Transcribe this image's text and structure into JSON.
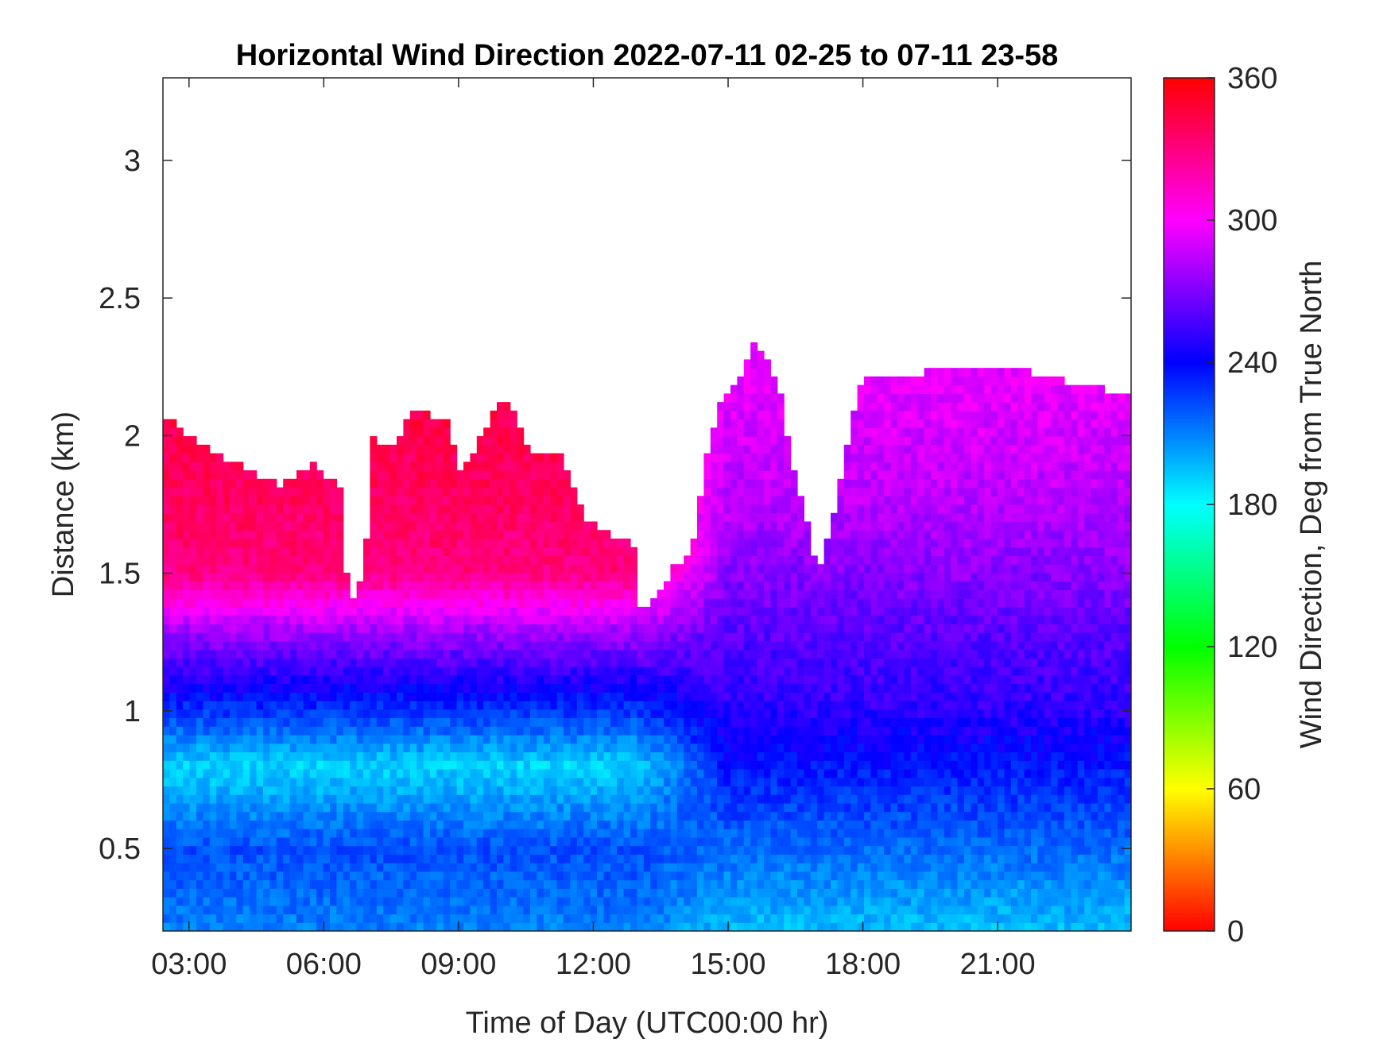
{
  "chart_data": {
    "type": "heatmap",
    "title": "Horizontal Wind Direction 2022-07-11 02-25 to 07-11 23-58",
    "xlabel": "Time of Day (UTC00:00 hr)",
    "ylabel": "Distance (km)",
    "colorbar_label": "Wind Direction, Deg from True North",
    "x_range_hours": [
      2.42,
      23.97
    ],
    "ylim": [
      0.2,
      3.3
    ],
    "x_ticks": [
      {
        "hour": 3,
        "label": "03:00"
      },
      {
        "hour": 6,
        "label": "06:00"
      },
      {
        "hour": 9,
        "label": "09:00"
      },
      {
        "hour": 12,
        "label": "12:00"
      },
      {
        "hour": 15,
        "label": "15:00"
      },
      {
        "hour": 18,
        "label": "18:00"
      },
      {
        "hour": 21,
        "label": "21:00"
      }
    ],
    "y_ticks": [
      {
        "value": 0.5,
        "label": "0.5"
      },
      {
        "value": 1,
        "label": "1"
      },
      {
        "value": 1.5,
        "label": "1.5"
      },
      {
        "value": 2,
        "label": "2"
      },
      {
        "value": 2.5,
        "label": "2.5"
      },
      {
        "value": 3,
        "label": "3"
      }
    ],
    "colorbar": {
      "range": [
        0,
        360
      ],
      "colormap": "hsv",
      "ticks": [
        {
          "value": 0,
          "label": "0"
        },
        {
          "value": 60,
          "label": "60"
        },
        {
          "value": 120,
          "label": "120"
        },
        {
          "value": 180,
          "label": "180"
        },
        {
          "value": 240,
          "label": "240"
        },
        {
          "value": 300,
          "label": "300"
        },
        {
          "value": 360,
          "label": "360"
        }
      ]
    },
    "data_top_km": [
      [
        2.42,
        2.08
      ],
      [
        3.0,
        2.0
      ],
      [
        4.0,
        1.9
      ],
      [
        5.0,
        1.82
      ],
      [
        5.8,
        1.9
      ],
      [
        6.4,
        1.8
      ],
      [
        6.55,
        1.38
      ],
      [
        6.9,
        1.5
      ],
      [
        7.1,
        2.0
      ],
      [
        7.5,
        1.95
      ],
      [
        8.0,
        2.1
      ],
      [
        8.8,
        2.05
      ],
      [
        9.0,
        1.85
      ],
      [
        9.5,
        2.0
      ],
      [
        10.0,
        2.15
      ],
      [
        10.6,
        1.95
      ],
      [
        11.2,
        1.95
      ],
      [
        11.8,
        1.7
      ],
      [
        12.3,
        1.65
      ],
      [
        12.9,
        1.6
      ],
      [
        13.05,
        1.38
      ],
      [
        13.4,
        1.4
      ],
      [
        13.7,
        1.5
      ],
      [
        14.2,
        1.6
      ],
      [
        14.5,
        1.9
      ],
      [
        14.8,
        2.1
      ],
      [
        15.2,
        2.2
      ],
      [
        15.6,
        2.35
      ],
      [
        16.1,
        2.2
      ],
      [
        16.5,
        1.85
      ],
      [
        16.8,
        1.65
      ],
      [
        17.0,
        1.5
      ],
      [
        17.4,
        1.75
      ],
      [
        17.6,
        1.9
      ],
      [
        17.8,
        2.1
      ],
      [
        18.0,
        2.2
      ],
      [
        19.0,
        2.2
      ],
      [
        19.5,
        2.25
      ],
      [
        20.5,
        2.24
      ],
      [
        21.5,
        2.24
      ],
      [
        22.5,
        2.2
      ],
      [
        23.97,
        2.15
      ]
    ],
    "layers_deg": [
      {
        "km": 0.2,
        "early": 210,
        "late": 195
      },
      {
        "km": 0.5,
        "early": 222,
        "late": 215
      },
      {
        "km": 0.8,
        "early": 190,
        "late": 235
      },
      {
        "km": 1.0,
        "early": 228,
        "late": 250
      },
      {
        "km": 1.3,
        "early": 280,
        "late": 262
      },
      {
        "km": 1.5,
        "early": 330,
        "late": 272
      },
      {
        "km": 1.8,
        "early": 338,
        "late": 285
      },
      {
        "km": 2.2,
        "early": 345,
        "late": 295
      }
    ]
  }
}
